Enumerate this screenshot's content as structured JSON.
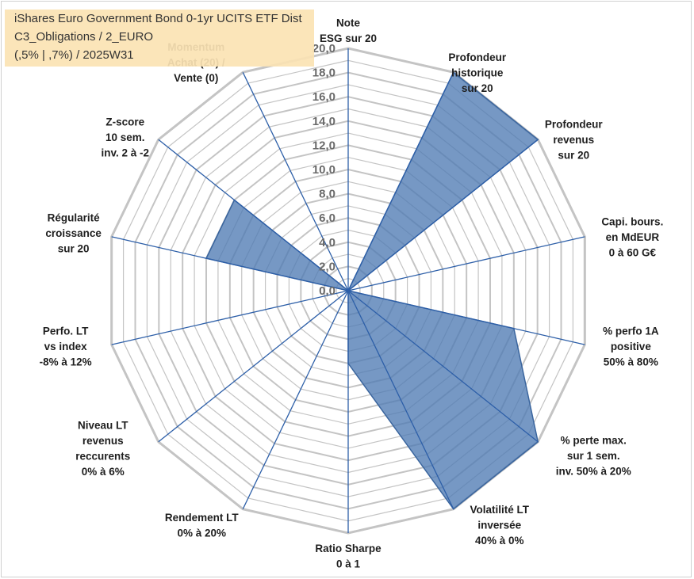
{
  "title": {
    "line1": "iShares Euro Government Bond 0-1yr UCITS ETF Dist",
    "line2": "C3_Obligations / 2_EURO",
    "line3": "(,5% | ,7%) / 2025W31"
  },
  "chart_data": {
    "type": "radar",
    "rlim": [
      0,
      20
    ],
    "tick_labels": [
      "0,0",
      "2,0",
      "4,0",
      "6,0",
      "8,0",
      "10,0",
      "12,0",
      "14,0",
      "16,0",
      "18,0",
      "20,0"
    ],
    "grid": true,
    "axes": [
      {
        "lines": [
          "Note",
          "ESG sur 20"
        ]
      },
      {
        "lines": [
          "Profondeur",
          "historique",
          "sur 20"
        ]
      },
      {
        "lines": [
          "Profondeur",
          "revenus",
          "sur 20"
        ]
      },
      {
        "lines": [
          "Capi. bours.",
          "en MdEUR",
          "0 à 60 G€"
        ]
      },
      {
        "lines": [
          "% perfo 1A",
          "positive",
          "50% à 80%"
        ]
      },
      {
        "lines": [
          "% perte max.",
          "sur 1 sem.",
          "inv. 50% à 20%"
        ]
      },
      {
        "lines": [
          "Volatilité LT",
          "inversée",
          "40% à 0%"
        ]
      },
      {
        "lines": [
          "Ratio Sharpe",
          "0 à 1"
        ]
      },
      {
        "lines": [
          "Rendement LT",
          "0% à 20%"
        ]
      },
      {
        "lines": [
          "Niveau LT",
          "revenus",
          "reccurents",
          "0% à 6%"
        ]
      },
      {
        "lines": [
          "Perfo. LT",
          "vs index",
          "-8% à 12%"
        ]
      },
      {
        "lines": [
          "Régularité",
          "croissance",
          "sur 20"
        ]
      },
      {
        "lines": [
          "Z-score",
          "10 sem.",
          "inv. 2 à -2"
        ]
      },
      {
        "lines": [
          "Momentum",
          "Achat (20) /",
          "Vente (0)"
        ]
      }
    ],
    "series": [
      {
        "values": [
          0,
          20,
          20,
          0,
          14,
          20,
          20,
          6,
          0,
          0,
          0,
          12,
          12,
          0
        ]
      }
    ],
    "colors": {
      "fill": "#4f7bb3",
      "stroke": "#3a659e",
      "axis": "#2d5fa8",
      "grid": "#c4c4c4",
      "momentum_label": "#a89878"
    }
  }
}
